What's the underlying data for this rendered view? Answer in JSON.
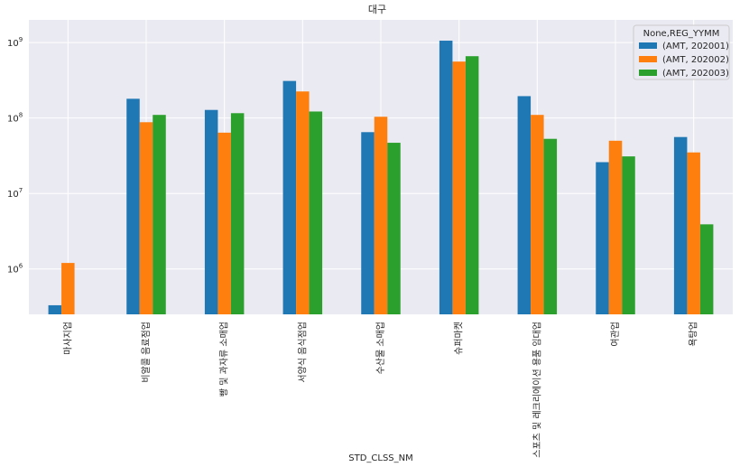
{
  "chart_data": {
    "type": "bar",
    "title": "대구",
    "xlabel": "STD_CLSS_NM",
    "ylabel": "",
    "yscale": "log",
    "ylim": [
      250000,
      2000000000
    ],
    "yticks": [
      {
        "value": 1000000,
        "base": "10",
        "exp": "6"
      },
      {
        "value": 10000000,
        "base": "10",
        "exp": "7"
      },
      {
        "value": 100000000,
        "base": "10",
        "exp": "8"
      },
      {
        "value": 1000000000,
        "base": "10",
        "exp": "9"
      }
    ],
    "categories": [
      "마사지업",
      "비알콜 음료점업",
      "빵 및 과자류 소매업",
      "서양식 음식점업",
      "수산물 소매업",
      "슈퍼마켓",
      "스포츠 및 레크리에이션 용품 임대업",
      "여관업",
      "욕탕업"
    ],
    "grid": true,
    "legend": {
      "title": "None,REG_YYMM",
      "position": "top-right"
    },
    "series": [
      {
        "name": "(AMT, 202001)",
        "color": "#1f77b4",
        "values": [
          330000,
          180000000,
          128000000,
          310000000,
          65000000,
          1060000000,
          195000000,
          26000000,
          56000000
        ]
      },
      {
        "name": "(AMT, 202002)",
        "color": "#ff7f0e",
        "values": [
          1200000,
          88000000,
          64000000,
          225000000,
          104000000,
          560000000,
          110000000,
          50000000,
          35000000
        ]
      },
      {
        "name": "(AMT, 202003)",
        "color": "#2ca02c",
        "values": [
          null,
          110000000,
          116000000,
          122000000,
          47000000,
          660000000,
          53000000,
          31000000,
          3900000
        ]
      }
    ]
  }
}
